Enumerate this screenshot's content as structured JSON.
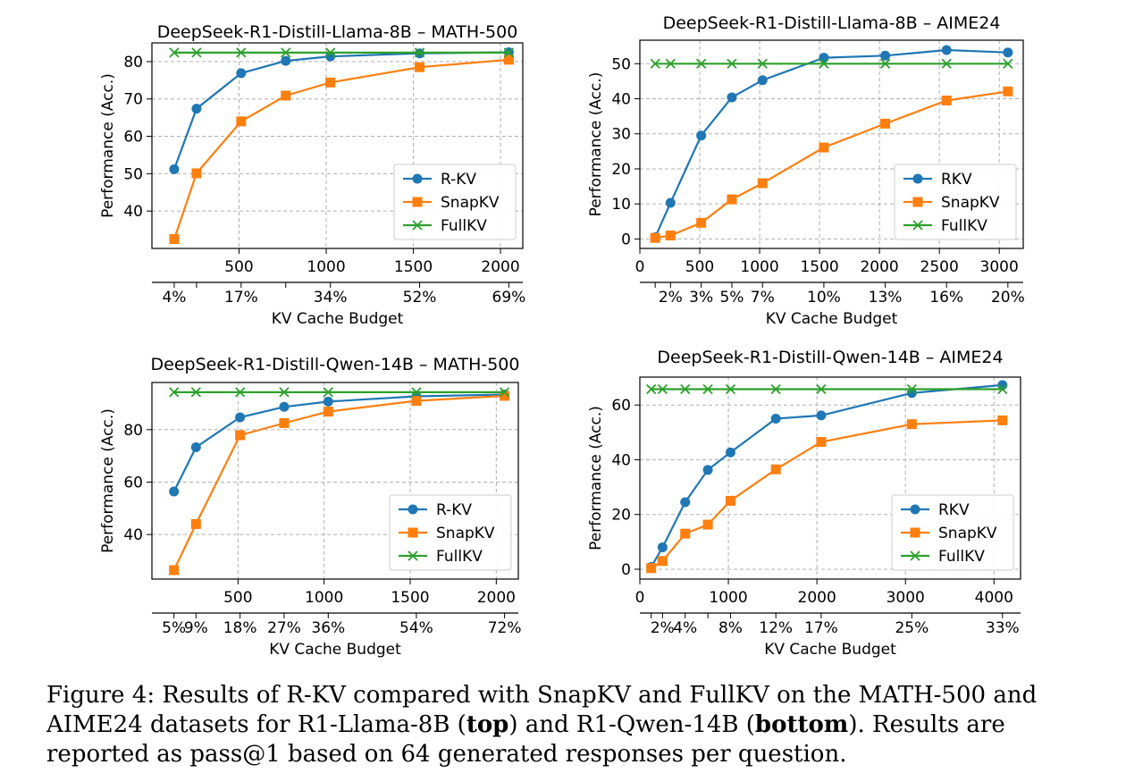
{
  "colors": {
    "rkv": "#1f77b4",
    "snapkv": "#ff7f0e",
    "fullkv": "#2ca02c"
  },
  "chart_data": [
    {
      "type": "line",
      "title": "DeepSeek-R1-Distill-Llama-8B – MATH-500",
      "xlabel": "KV Cache Budget",
      "ylabel": "Performance (Acc.)",
      "xlim": [
        0,
        2128
      ],
      "ylim": [
        30,
        85
      ],
      "xticks": [
        500,
        1000,
        1500,
        2000
      ],
      "yticks": [
        40,
        50,
        60,
        70,
        80
      ],
      "grid": true,
      "legend_location": "lower right",
      "secondary_axis": {
        "positions": [
          128,
          256,
          512,
          768,
          1024,
          1536,
          2048
        ],
        "labels": [
          "4%",
          "",
          "17%",
          "",
          "34%",
          "52%",
          "69%"
        ]
      },
      "series": [
        {
          "name": "R-KV",
          "marker": "circle",
          "x": [
            128,
            256,
            512,
            768,
            1024,
            1536,
            2048
          ],
          "values": [
            51.2,
            67.4,
            76.9,
            80.2,
            81.4,
            82.2,
            82.5
          ]
        },
        {
          "name": "SnapKV",
          "marker": "square",
          "x": [
            128,
            256,
            512,
            768,
            1024,
            1536,
            2048
          ],
          "values": [
            32.5,
            50.1,
            64.0,
            70.9,
            74.4,
            78.5,
            80.5
          ]
        },
        {
          "name": "FullKV",
          "marker": "x",
          "x": [
            128,
            256,
            512,
            768,
            1024,
            1536,
            2048
          ],
          "values": [
            82.4,
            82.4,
            82.4,
            82.4,
            82.4,
            82.4,
            82.4
          ]
        }
      ]
    },
    {
      "type": "line",
      "title": "DeepSeek-R1-Distill-Llama-8B – AIME24",
      "xlabel": "KV Cache Budget",
      "ylabel": "Performance (Acc.)",
      "xlim": [
        0,
        3200
      ],
      "ylim": [
        -2.7,
        56.7
      ],
      "xticks": [
        0,
        500,
        1000,
        1500,
        2000,
        2500,
        3000
      ],
      "yticks": [
        0,
        10,
        20,
        30,
        40,
        50
      ],
      "grid": true,
      "legend_location": "lower right",
      "secondary_axis": {
        "positions": [
          128,
          256,
          512,
          768,
          1024,
          1536,
          2048,
          2560,
          3072
        ],
        "labels": [
          "",
          "2%",
          "3%",
          "5%",
          "7%",
          "10%",
          "13%",
          "16%",
          "20%"
        ]
      },
      "series": [
        {
          "name": "RKV",
          "marker": "circle",
          "x": [
            128,
            256,
            512,
            768,
            1024,
            1536,
            2048,
            2560,
            3072
          ],
          "values": [
            0.5,
            10.3,
            29.5,
            40.4,
            45.3,
            51.7,
            52.3,
            53.9,
            53.2
          ]
        },
        {
          "name": "SnapKV",
          "marker": "square",
          "x": [
            128,
            256,
            512,
            768,
            1024,
            1536,
            2048,
            2560,
            3072
          ],
          "values": [
            0.3,
            1.0,
            4.6,
            11.3,
            15.9,
            26.1,
            32.9,
            39.5,
            42.1
          ]
        },
        {
          "name": "FullKV",
          "marker": "x",
          "x": [
            128,
            256,
            512,
            768,
            1024,
            1536,
            2048,
            2560,
            3072
          ],
          "values": [
            50.0,
            50.0,
            50.0,
            50.0,
            50.0,
            50.0,
            50.0,
            50.0,
            50.0
          ]
        }
      ]
    },
    {
      "type": "line",
      "title": "DeepSeek-R1-Distill-Qwen-14B – MATH-500",
      "xlabel": "KV Cache Budget",
      "ylabel": "Performance (Acc.)",
      "xlim": [
        0,
        2128
      ],
      "ylim": [
        23,
        98
      ],
      "xticks": [
        500,
        1000,
        1500,
        2000
      ],
      "yticks": [
        40,
        60,
        80
      ],
      "grid": true,
      "legend_location": "lower right",
      "secondary_axis": {
        "positions": [
          128,
          256,
          512,
          768,
          1024,
          1536,
          2048
        ],
        "labels": [
          "5%",
          "9%",
          "18%",
          "27%",
          "36%",
          "54%",
          "72%"
        ]
      },
      "series": [
        {
          "name": "R-KV",
          "marker": "circle",
          "x": [
            128,
            256,
            512,
            768,
            1024,
            1536,
            2048
          ],
          "values": [
            56.4,
            73.3,
            84.7,
            88.7,
            90.7,
            92.7,
            93.4
          ]
        },
        {
          "name": "SnapKV",
          "marker": "square",
          "x": [
            128,
            256,
            512,
            768,
            1024,
            1536,
            2048
          ],
          "values": [
            26.4,
            44.0,
            77.9,
            82.5,
            86.9,
            91.0,
            92.9
          ]
        },
        {
          "name": "FullKV",
          "marker": "x",
          "x": [
            128,
            256,
            512,
            768,
            1024,
            1536,
            2048
          ],
          "values": [
            94.3,
            94.3,
            94.3,
            94.3,
            94.3,
            94.3,
            94.3
          ]
        }
      ]
    },
    {
      "type": "line",
      "title": "DeepSeek-R1-Distill-Qwen-14B – AIME24",
      "xlabel": "KV Cache Budget",
      "ylabel": "Performance (Acc.)",
      "xlim": [
        0,
        4300
      ],
      "ylim": [
        -3.6,
        70.2
      ],
      "xticks": [
        0,
        1000,
        2000,
        3000,
        4000
      ],
      "yticks": [
        0,
        20,
        40,
        60
      ],
      "grid": true,
      "legend_location": "lower right",
      "secondary_axis": {
        "positions": [
          128,
          256,
          512,
          768,
          1024,
          1536,
          2048,
          3072,
          4096
        ],
        "labels": [
          "",
          "2%",
          "4%",
          "",
          "8%",
          "12%",
          "17%",
          "25%",
          "33%"
        ]
      },
      "series": [
        {
          "name": "RKV",
          "marker": "circle",
          "x": [
            128,
            256,
            512,
            768,
            1024,
            1536,
            2048,
            3072,
            4096
          ],
          "values": [
            0.8,
            8.0,
            24.5,
            36.3,
            42.7,
            55.0,
            56.2,
            64.4,
            67.3
          ]
        },
        {
          "name": "SnapKV",
          "marker": "square",
          "x": [
            128,
            256,
            512,
            768,
            1024,
            1536,
            2048,
            3072,
            4096
          ],
          "values": [
            0.4,
            3.0,
            13.0,
            16.3,
            25.0,
            36.5,
            46.5,
            53.0,
            54.4
          ]
        },
        {
          "name": "FullKV",
          "marker": "x",
          "x": [
            128,
            256,
            512,
            768,
            1024,
            1536,
            2048,
            3072,
            4096
          ],
          "values": [
            65.8,
            65.8,
            65.8,
            65.8,
            65.8,
            65.8,
            65.8,
            65.8,
            65.8
          ]
        }
      ]
    }
  ],
  "caption": {
    "part1": "Figure 4: Results of R-KV compared with SnapKV and FullKV on the MATH-500 and AIME24 datasets for R1-Llama-8B (",
    "bold1": "top",
    "part2": ") and R1-Qwen-14B (",
    "bold2": "bottom",
    "part3": "). Results are reported as pass@1 based on 64 generated responses per question."
  }
}
